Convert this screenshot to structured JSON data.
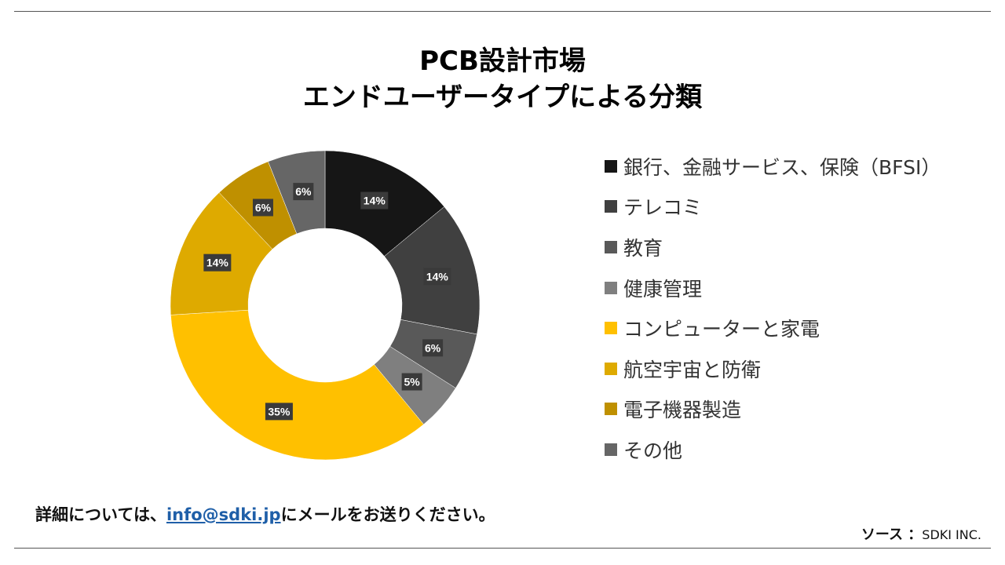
{
  "title_line1": "PCB設計市場",
  "title_line2": "エンドユーザータイプによる分類",
  "footer": {
    "prefix": "詳細については、",
    "email": "info@sdki.jp",
    "suffix": "にメールをお送りください。"
  },
  "source": {
    "label": "ソース ：",
    "value": "SDKI INC."
  },
  "chart_data": {
    "type": "pie",
    "donut": true,
    "legend_position": "right",
    "categories": [
      "銀行、金融サービス、保険（BFSI）",
      "テレコミ",
      "教育",
      "健康管理",
      "コンピューターと家電",
      "航空宇宙と防衛",
      "電子機器製造",
      "その他"
    ],
    "values": [
      14,
      14,
      6,
      5,
      35,
      14,
      6,
      6
    ],
    "data_labels": [
      "14%",
      "14%",
      "6%",
      "5%",
      "35%",
      "14%",
      "6%",
      "6%"
    ],
    "colors": [
      "#161616",
      "#404040",
      "#595959",
      "#7f7f7f",
      "#ffc000",
      "#deaa00",
      "#bf9000",
      "#666666"
    ],
    "label_color": "#ffffff",
    "label_bg": "#3a3a3a"
  }
}
